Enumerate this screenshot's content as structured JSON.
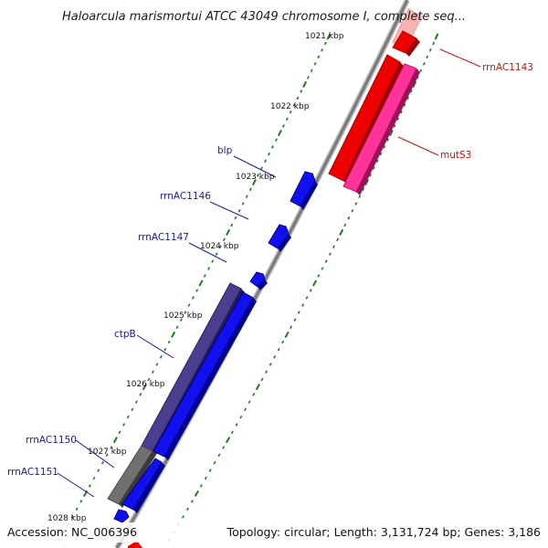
{
  "title": "Haloarcula marismortui ATCC 43049 chromosome I, complete seq...",
  "footer": {
    "accession": "Accession: NC_006396",
    "summary": "Topology: circular; Length: 3,131,724 bp; Genes: 3,186"
  },
  "ticks": [
    "1021 kbp",
    "1022 kbp",
    "1023 kbp",
    "1024 kbp",
    "1025 kbp",
    "1026 kbp",
    "1027 kbp",
    "1028 kbp"
  ],
  "genes_left": [
    "blp",
    "rrnAC1146",
    "rrnAC1147",
    "ctpB",
    "rrnAC1150",
    "rrnAC1151"
  ],
  "genes_right": [
    "rrnAC1143",
    "mutS3"
  ],
  "colors": {
    "forward_strand": "#1010f0",
    "reverse_strand": "#ee0000",
    "reverse_pink": "#ff3399",
    "rrna": "#4a3f8f",
    "backbone": "#808080",
    "tick_mark": "#1f7a1f",
    "label_left": "#1a1aa0",
    "label_right": "#c41414"
  }
}
